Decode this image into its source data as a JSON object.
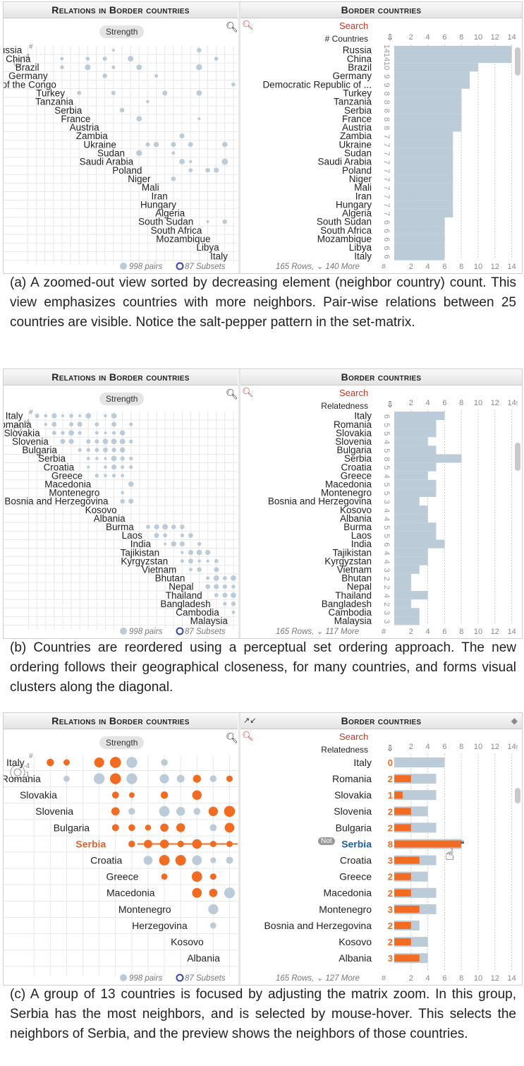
{
  "labels": {
    "left_title": "Relations in Border countries",
    "right_title": "Border countries",
    "strength": "Strength",
    "search": "Search",
    "hash": "#",
    "neg4": "-4",
    "neg1": "-1",
    "pairs": "998 pairs",
    "subsets": "87 Subsets",
    "axis_hash": "#",
    "not": "Not"
  },
  "axis_ticks": [
    "2",
    "4",
    "6",
    "8",
    "10",
    "12",
    "14"
  ],
  "panels": [
    {
      "id": "a",
      "sort_label": "# Countries",
      "rows_footer": "165 Rows, ⌄ 140 More",
      "caption": "(a) A zoomed-out view sorted by decreasing element (neighbor country) count. This view emphasizes countries with more neighbors. Pair-wise relations between 25 countries are visible. Notice the salt-pepper pattern in the set-matrix.",
      "left_names": [
        "Russia",
        "China",
        "Brazil",
        "Germany",
        "Democratic Republic of the Congo",
        "Turkey",
        "Tanzania",
        "Serbia",
        "France",
        "Austria",
        "Zambia",
        "Ukraine",
        "Sudan",
        "Saudi Arabia",
        "Poland",
        "Niger",
        "Mali",
        "Iran",
        "Hungary",
        "Algeria",
        "South Sudan",
        "South Africa",
        "Mozambique",
        "Libya",
        "Italy"
      ],
      "right_names": [
        "Russia",
        "China",
        "Brazil",
        "Germany",
        "Democratic Republic of ...",
        "Turkey",
        "Tanzania",
        "Serbia",
        "France",
        "Austria",
        "Zambia",
        "Ukraine",
        "Sudan",
        "Saudi Arabia",
        "Poland",
        "Niger",
        "Mali",
        "Iran",
        "Hungary",
        "Algeria",
        "South Sudan",
        "South Africa",
        "Mozambique",
        "Libya",
        "Italy"
      ],
      "counts": [
        "14",
        "14",
        "10",
        "9",
        "9",
        "8",
        "8",
        "8",
        "8",
        "8",
        "7",
        "7",
        "7",
        "7",
        "7",
        "7",
        "7",
        "7",
        "7",
        "7",
        "6",
        "6",
        "6",
        "6",
        "6"
      ],
      "values": [
        14,
        14,
        10,
        9,
        9,
        8,
        8,
        8,
        8,
        8,
        7,
        7,
        7,
        7,
        7,
        7,
        7,
        7,
        7,
        7,
        6,
        6,
        6,
        6,
        6
      ]
    },
    {
      "id": "b",
      "sort_label": "Relatedness",
      "rows_footer": "165 Rows, ⌄ 117 More",
      "caption": "(b) Countries are reordered using a perceptual set ordering approach. The new ordering follows their geographical closeness, for many countries, and forms visual clusters along the diagonal.",
      "left_names": [
        "Italy",
        "Romania",
        "Slovakia",
        "Slovenia",
        "Bulgaria",
        "Serbia",
        "Croatia",
        "Greece",
        "Macedonia",
        "Montenegro",
        "Bosnia and Herzegovina",
        "Kosovo",
        "Albania",
        "Burma",
        "Laos",
        "India",
        "Tajikistan",
        "Kyrgyzstan",
        "Vietnam",
        "Bhutan",
        "Nepal",
        "Thailand",
        "Bangladesh",
        "Cambodia",
        "Malaysia"
      ],
      "right_names": [
        "Italy",
        "Romania",
        "Slovakia",
        "Slovenia",
        "Bulgaria",
        "Serbia",
        "Croatia",
        "Greece",
        "Macedonia",
        "Montenegro",
        "Bosnia and Herzegovina",
        "Kosovo",
        "Albania",
        "Burma",
        "Laos",
        "India",
        "Tajikistan",
        "Kyrgyzstan",
        "Vietnam",
        "Bhutan",
        "Nepal",
        "Thailand",
        "Bangladesh",
        "Cambodia",
        "Malaysia"
      ],
      "counts": [
        "6",
        "5",
        "5",
        "4",
        "5",
        "8",
        "5",
        "4",
        "5",
        "5",
        "3",
        "4",
        "4",
        "5",
        "5",
        "6",
        "4",
        "4",
        "3",
        "2",
        "2",
        "4",
        "2",
        "3",
        "3"
      ],
      "values": [
        6,
        5,
        5,
        4,
        5,
        8,
        5,
        4,
        5,
        5,
        3,
        4,
        4,
        5,
        5,
        6,
        4,
        4,
        3,
        2,
        2,
        4,
        2,
        3,
        3
      ]
    },
    {
      "id": "c",
      "sort_label": "Relatedness",
      "rows_footer": "165 Rows, ⌄ 127 More",
      "caption": "(c) A group of 13 countries is focused by adjusting the matrix zoom. In this group, Serbia has the most neighbors, and is selected by mouse-hover. This selects the neighbors of Serbia, and the preview shows the neighbors of those countries.",
      "left_names": [
        "Italy",
        "Romania",
        "Slovakia",
        "Slovenia",
        "Bulgaria",
        "Serbia",
        "Croatia",
        "Greece",
        "Macedonia",
        "Montenegro",
        "Herzegovina",
        "Kosovo",
        "Albania"
      ],
      "right_names": [
        "Italy",
        "Romania",
        "Slovakia",
        "Slovenia",
        "Bulgaria",
        "Serbia",
        "Croatia",
        "Greece",
        "Macedonia",
        "Montenegro",
        "Bosnia and Herzegovina",
        "Kosovo",
        "Albania"
      ],
      "counts": [
        "0",
        "2",
        "1",
        "2",
        "2",
        "8",
        "3",
        "2",
        "2",
        "3",
        "2",
        "2",
        "3"
      ],
      "values": [
        6,
        5,
        5,
        4,
        5,
        8,
        5,
        4,
        5,
        5,
        3,
        4,
        4
      ],
      "selected_values": [
        0,
        2,
        1,
        2,
        2,
        8,
        3,
        2,
        2,
        3,
        2,
        2,
        3
      ],
      "selected_row": "Serbia"
    }
  ],
  "colors": {
    "bar": "#bccbd8",
    "dot": "#bccbd8",
    "orange": "#f26b22",
    "grid": "#e8e8e8",
    "selected_name": "#1e5ea8",
    "highlight": "#e4622a"
  },
  "icons": [
    "zoom-in-icon",
    "search-icon",
    "sort-icon",
    "subset-ring-icon",
    "collapse-icon",
    "tag-icon",
    "lock-icon",
    "hand-cursor-icon",
    "scroll-up-icon"
  ]
}
